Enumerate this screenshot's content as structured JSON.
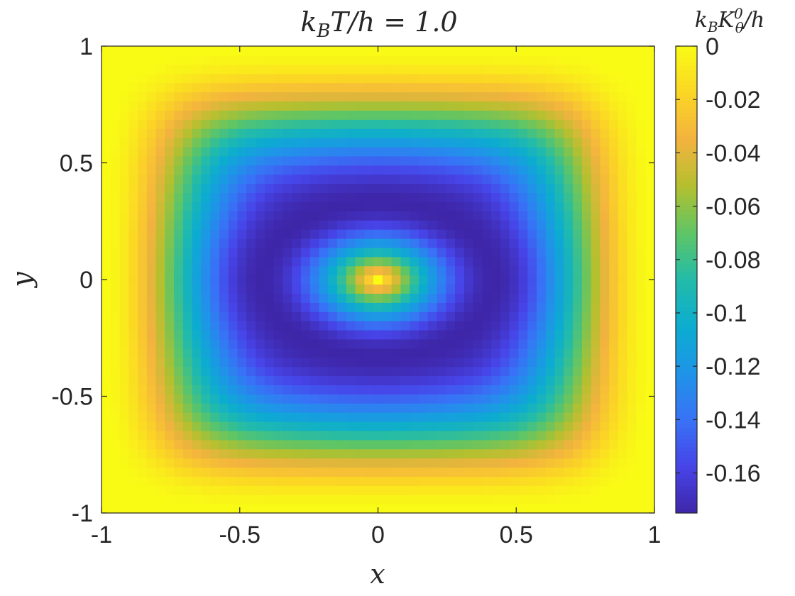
{
  "chart_data": {
    "type": "heatmap",
    "title": "k_B T / h = 1.0",
    "title_parts": {
      "k": "k",
      "k_sub": "B",
      "rest": "T/h = 1.0"
    },
    "xlabel": "x",
    "ylabel": "y",
    "xlim": [
      -1,
      1
    ],
    "ylim": [
      -1,
      1
    ],
    "xticks": [
      -1,
      -0.5,
      0,
      0.5,
      1
    ],
    "xtick_labels": [
      "-1",
      "-0.5",
      "0",
      "0.5",
      "1"
    ],
    "yticks": [
      -1,
      -0.5,
      0,
      0.5,
      1
    ],
    "ytick_labels": [
      "-1",
      "-0.5",
      "0",
      "0.5",
      "1"
    ],
    "grid_size": [
      61,
      51
    ],
    "field_model": {
      "description": "approximate reconstruction of the plotted field K(x,y)",
      "center_value": 0.0,
      "ring_radius": 0.42,
      "ring_min": -0.175,
      "edge_value": 0.0,
      "y_aspect": 0.78
    },
    "colorbar": {
      "label": "k_B K_θ^0 / h",
      "label_parts": {
        "k": "k",
        "k_sub": "B",
        "K": "K",
        "K_sub": "θ",
        "K_sup": "0",
        "rest": "/h"
      },
      "range": [
        -0.175,
        0
      ],
      "ticks": [
        0,
        -0.02,
        -0.04,
        -0.06,
        -0.08,
        -0.1,
        -0.12,
        -0.14,
        -0.16
      ],
      "tick_labels": [
        "0",
        "-0.02",
        "-0.04",
        "-0.06",
        "-0.08",
        "-0.1",
        "-0.12",
        "-0.14",
        "-0.16"
      ],
      "colormap": "parula",
      "colormap_stops": [
        "#3e26a8",
        "#4744e8",
        "#3872f6",
        "#1f94e8",
        "#0cacd0",
        "#23bba9",
        "#5ec566",
        "#b3c02f",
        "#f3b33f",
        "#fbd525",
        "#f9fb15"
      ]
    }
  }
}
